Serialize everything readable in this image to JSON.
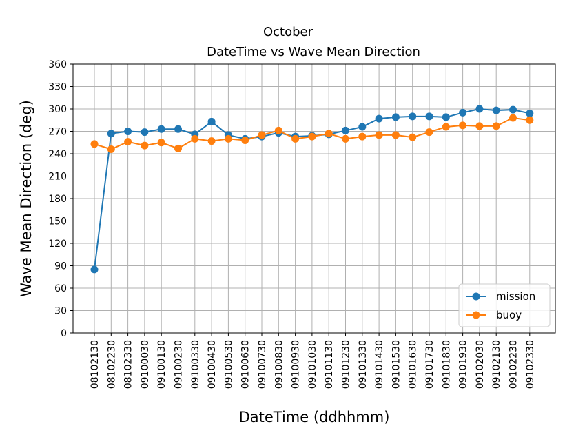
{
  "chart_data": {
    "type": "line",
    "title": "October",
    "subtitle": "DateTime vs Wave Mean Direction",
    "xlabel": "DateTime (ddhhmm)",
    "ylabel": "Wave Mean Direction (deg)",
    "ylim": [
      0,
      360
    ],
    "yticks": [
      "0",
      "30",
      "60",
      "90",
      "120",
      "150",
      "180",
      "210",
      "240",
      "270",
      "300",
      "330",
      "360"
    ],
    "grid": true,
    "legend_position": "lower-right",
    "categories": [
      "08102130",
      "08102230",
      "08102330",
      "09100030",
      "09100130",
      "09100230",
      "09100330",
      "09100430",
      "09100530",
      "09100630",
      "09100730",
      "09100830",
      "09100930",
      "09101030",
      "09101130",
      "09101230",
      "09101330",
      "09101430",
      "09101530",
      "09101630",
      "09101730",
      "09101830",
      "09101930",
      "09102030",
      "09102130",
      "09102230",
      "09102330"
    ],
    "series": [
      {
        "name": "mission",
        "color": "#1f77b4",
        "values": [
          85,
          267,
          270,
          269,
          273,
          273,
          266,
          283,
          265,
          260,
          263,
          268,
          263,
          264,
          266,
          271,
          276,
          287,
          289,
          290,
          290,
          289,
          295,
          300,
          298,
          299,
          294
        ]
      },
      {
        "name": "buoy",
        "color": "#ff7f0e",
        "values": [
          253,
          246,
          256,
          251,
          255,
          247,
          260,
          257,
          260,
          258,
          265,
          271,
          260,
          263,
          267,
          260,
          263,
          265,
          265,
          262,
          269,
          276,
          278,
          277,
          277,
          288,
          285
        ]
      }
    ]
  }
}
